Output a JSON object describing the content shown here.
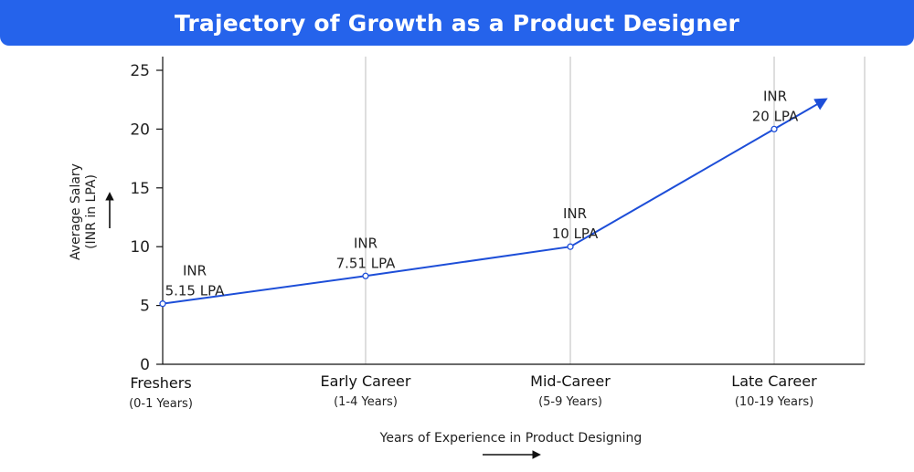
{
  "title": "Trajectory of Growth as a Product Designer",
  "chart_data": {
    "type": "line",
    "categories": [
      "Freshers",
      "Early Career",
      "Mid-Career",
      "Late Career"
    ],
    "category_sublabels": [
      "(0-1 Years)",
      "(1-4 Years)",
      "(5-9 Years)",
      "(10-19 Years)"
    ],
    "values": [
      5.15,
      7.51,
      10,
      20
    ],
    "point_labels": [
      [
        "INR",
        "5.15 LPA"
      ],
      [
        "INR",
        "7.51 LPA"
      ],
      [
        "INR",
        "10 LPA"
      ],
      [
        "INR",
        "20 LPA"
      ]
    ],
    "y_ticks": [
      0,
      5,
      10,
      15,
      20,
      25
    ],
    "ylim": [
      0,
      25
    ],
    "ylabel": [
      "Average Salary",
      "(INR in LPA)"
    ],
    "xlabel": "Years of Experience in Product Designing",
    "grid": "vertical",
    "line_color": "#1d4ed8"
  }
}
